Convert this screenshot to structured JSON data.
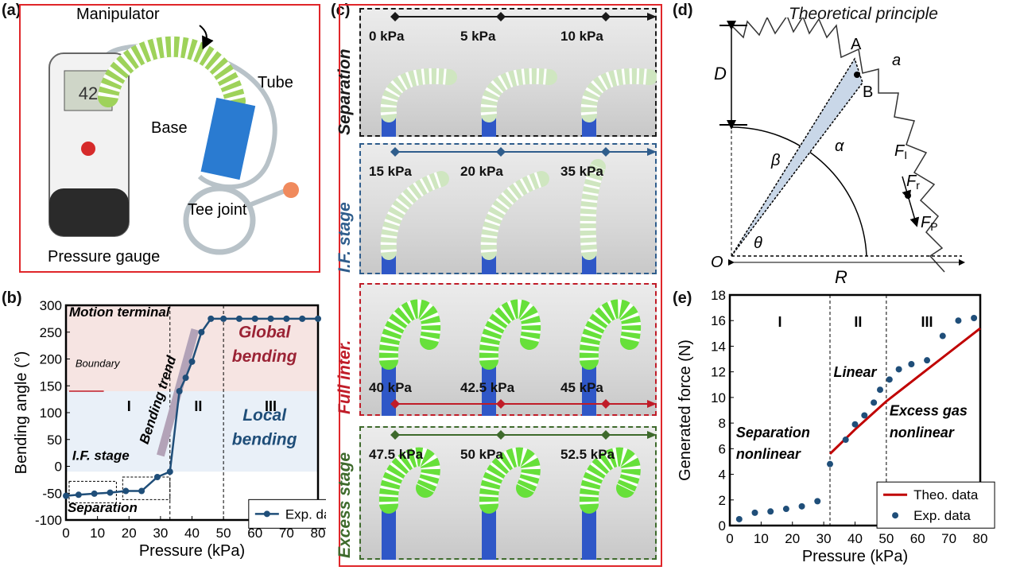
{
  "panels": {
    "a": {
      "label": "(a)",
      "annotations": [
        "Manipulator",
        "Tube",
        "Base",
        "Tee joint",
        "Pressure gauge"
      ],
      "gauge_reading": "42"
    },
    "b": {
      "label": "(b)"
    },
    "c": {
      "label": "(c)",
      "rows": [
        {
          "stage": "Separation",
          "color": "#1a1a1a",
          "pressures": [
            "0 kPa",
            "5 kPa",
            "10 kPa"
          ]
        },
        {
          "stage": "I.F. stage",
          "color": "#2f5d8c",
          "pressures": [
            "15 kPa",
            "20 kPa",
            "35 kPa"
          ]
        },
        {
          "stage": "Full inter.",
          "color": "#c01c28",
          "pressures": [
            "40 kPa",
            "42.5 kPa",
            "45 kPa"
          ]
        },
        {
          "stage": "Excess stage",
          "color": "#3e6a2c",
          "pressures": [
            "47.5 kPa",
            "50 kPa",
            "52.5 kPa"
          ]
        }
      ]
    },
    "d": {
      "label": "(d)",
      "title": "Theoretical principle",
      "symbols": [
        "D",
        "A",
        "B",
        "a",
        "α",
        "β",
        "θ",
        "O",
        "R",
        "F",
        "I",
        "F",
        "r",
        "F",
        "P"
      ]
    },
    "e": {
      "label": "(e)"
    }
  },
  "chart_data": [
    {
      "type": "line",
      "xlabel": "Pressure (kPa)",
      "ylabel": "Bending angle (°)",
      "xlim": [
        0,
        80
      ],
      "ylim": [
        -100,
        300
      ],
      "xticks": [
        "0",
        "10",
        "20",
        "30",
        "40",
        "50",
        "60",
        "70",
        "80"
      ],
      "yticks": [
        "-100",
        "-50",
        "0",
        "50",
        "100",
        "150",
        "200",
        "250",
        "300"
      ],
      "series": [
        {
          "name": "Exp. data",
          "color": "#1f4e79",
          "x": [
            0,
            4,
            9,
            14,
            19,
            24,
            29,
            33,
            36,
            38,
            40,
            43,
            46,
            50,
            55,
            60,
            65,
            70,
            75,
            80
          ],
          "y": [
            -55,
            -53,
            -51,
            -49,
            -46,
            -46,
            -20,
            -10,
            140,
            165,
            195,
            250,
            275,
            275,
            275,
            275,
            275,
            275,
            275,
            275
          ]
        }
      ],
      "legend_position": "bottom-right",
      "regions": [
        {
          "label": "Global bending",
          "from": 140,
          "to": 300,
          "color": "#f6e4e2"
        },
        {
          "label": "Local bending",
          "from": -10,
          "to": 140,
          "color": "#e9f0f8"
        }
      ],
      "stage_labels": [
        "I",
        "II",
        "III"
      ],
      "stage_dividers": [
        33,
        50
      ],
      "annotations": [
        "Motion terminal",
        "Bending trend",
        "Boundary",
        "I.F. stage",
        "Separation"
      ]
    },
    {
      "type": "scatter",
      "xlabel": "Pressure (kPa)",
      "ylabel": "Generated force (N)",
      "xlim": [
        0,
        80
      ],
      "ylim": [
        0,
        18
      ],
      "xticks": [
        "0",
        "10",
        "20",
        "30",
        "40",
        "50",
        "60",
        "70",
        "80"
      ],
      "yticks": [
        "0",
        "2",
        "4",
        "6",
        "8",
        "10",
        "12",
        "14",
        "16",
        "18"
      ],
      "series": [
        {
          "name": "Theo. data",
          "kind": "line",
          "color": "#c00000",
          "x": [
            32,
            40,
            50,
            60,
            70,
            80
          ],
          "y": [
            5.6,
            7.5,
            9.7,
            11.6,
            13.5,
            15.4
          ]
        },
        {
          "name": "Exp. data",
          "kind": "points",
          "color": "#1f4e79",
          "x": [
            3,
            8,
            13,
            18,
            23,
            28,
            32,
            37,
            40,
            43,
            46,
            48,
            51,
            54,
            58,
            63,
            68,
            73,
            78
          ],
          "y": [
            0.5,
            1.0,
            1.1,
            1.3,
            1.5,
            1.9,
            4.8,
            6.7,
            7.9,
            8.6,
            9.6,
            10.6,
            11.4,
            12.2,
            12.6,
            12.9,
            14.8,
            16.0,
            16.2
          ]
        }
      ],
      "legend_position": "bottom-right",
      "stage_labels": [
        "I",
        "II",
        "III"
      ],
      "stage_dividers": [
        32,
        50
      ],
      "annotations": [
        "Linear",
        "Excess gas nonlinear",
        "Separation nonlinear"
      ]
    }
  ]
}
